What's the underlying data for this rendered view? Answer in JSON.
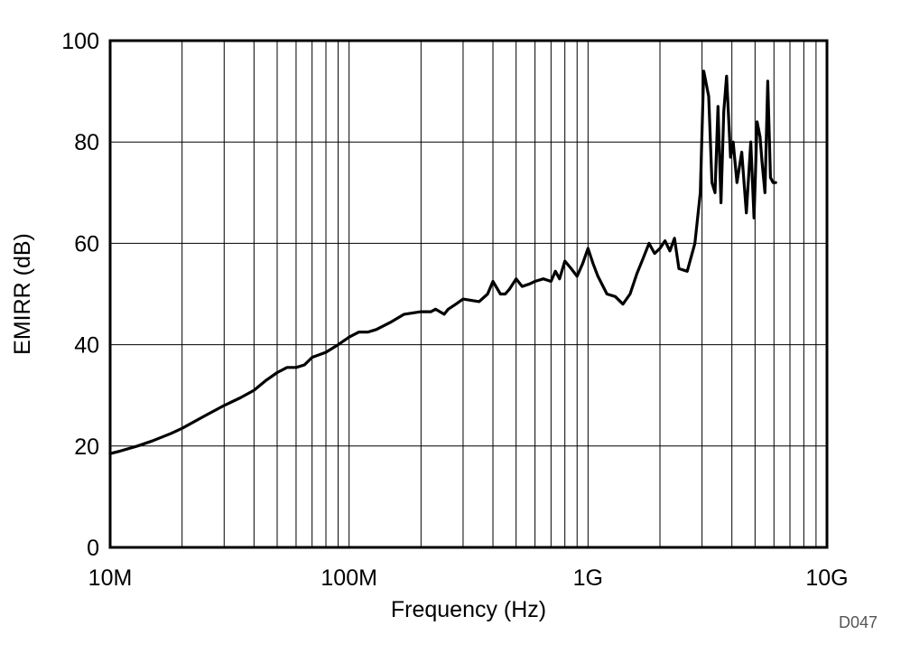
{
  "chart_data": {
    "type": "line",
    "xlabel": "Frequency (Hz)",
    "ylabel": "EMIRR (dB)",
    "x_scale": "log",
    "xlim": [
      10000000,
      10000000000
    ],
    "ylim": [
      0,
      100
    ],
    "x_ticks": [
      {
        "value": 10000000,
        "label": "10M"
      },
      {
        "value": 100000000,
        "label": "100M"
      },
      {
        "value": 1000000000,
        "label": "1G"
      },
      {
        "value": 10000000000,
        "label": "10G"
      }
    ],
    "y_ticks": [
      {
        "value": 0,
        "label": "0"
      },
      {
        "value": 20,
        "label": "20"
      },
      {
        "value": 40,
        "label": "40"
      },
      {
        "value": 60,
        "label": "60"
      },
      {
        "value": 80,
        "label": "80"
      },
      {
        "value": 100,
        "label": "100"
      }
    ],
    "grid": true,
    "line_color": "#000000",
    "series": [
      {
        "x": [
          10000000,
          11000000,
          13000000,
          15000000,
          18000000,
          20000000,
          25000000,
          30000000,
          35000000,
          40000000,
          45000000,
          50000000,
          55000000,
          60000000,
          65000000,
          70000000,
          75000000,
          80000000,
          90000000,
          100000000,
          110000000,
          120000000,
          130000000,
          150000000,
          170000000,
          200000000,
          220000000,
          230000000,
          250000000,
          260000000,
          280000000,
          300000000,
          350000000,
          380000000,
          400000000,
          430000000,
          450000000,
          470000000,
          500000000,
          530000000,
          570000000,
          600000000,
          650000000,
          700000000,
          730000000,
          760000000,
          800000000,
          850000000,
          900000000,
          950000000,
          1000000000,
          1050000000,
          1100000000,
          1200000000,
          1300000000,
          1400000000,
          1500000000,
          1600000000,
          1700000000,
          1800000000,
          1900000000,
          2000000000,
          2100000000,
          2200000000,
          2300000000,
          2400000000,
          2600000000,
          2800000000,
          2950000000,
          3050000000,
          3200000000,
          3300000000,
          3400000000,
          3500000000,
          3600000000,
          3700000000,
          3800000000,
          3950000000,
          4050000000,
          4200000000,
          4400000000,
          4600000000,
          4800000000,
          4950000000,
          5100000000,
          5250000000,
          5350000000,
          5500000000,
          5650000000,
          5800000000,
          5950000000,
          6100000000
        ],
        "y": [
          18.5,
          19,
          20,
          21,
          22.5,
          23.5,
          26,
          28,
          29.5,
          31,
          33,
          34.5,
          35.5,
          35.5,
          36,
          37.5,
          38,
          38.5,
          40,
          41.5,
          42.5,
          42.5,
          43,
          44.5,
          46,
          46.5,
          46.5,
          47,
          46,
          47,
          48,
          49,
          48.5,
          50,
          52.5,
          50,
          50,
          51,
          53,
          51.5,
          52,
          52.5,
          53,
          52.5,
          54.5,
          53,
          56.5,
          55,
          53.5,
          56,
          59,
          56,
          53.5,
          50,
          49.5,
          48,
          50,
          54,
          57,
          60,
          58,
          59,
          60.5,
          58.5,
          61,
          55,
          54.5,
          60,
          70,
          94,
          89,
          72,
          70,
          87,
          68,
          86,
          93,
          77,
          80,
          72,
          78,
          66,
          80,
          65,
          84,
          81,
          76,
          70,
          92,
          73,
          72,
          72
        ]
      }
    ],
    "annotation": "D047"
  }
}
